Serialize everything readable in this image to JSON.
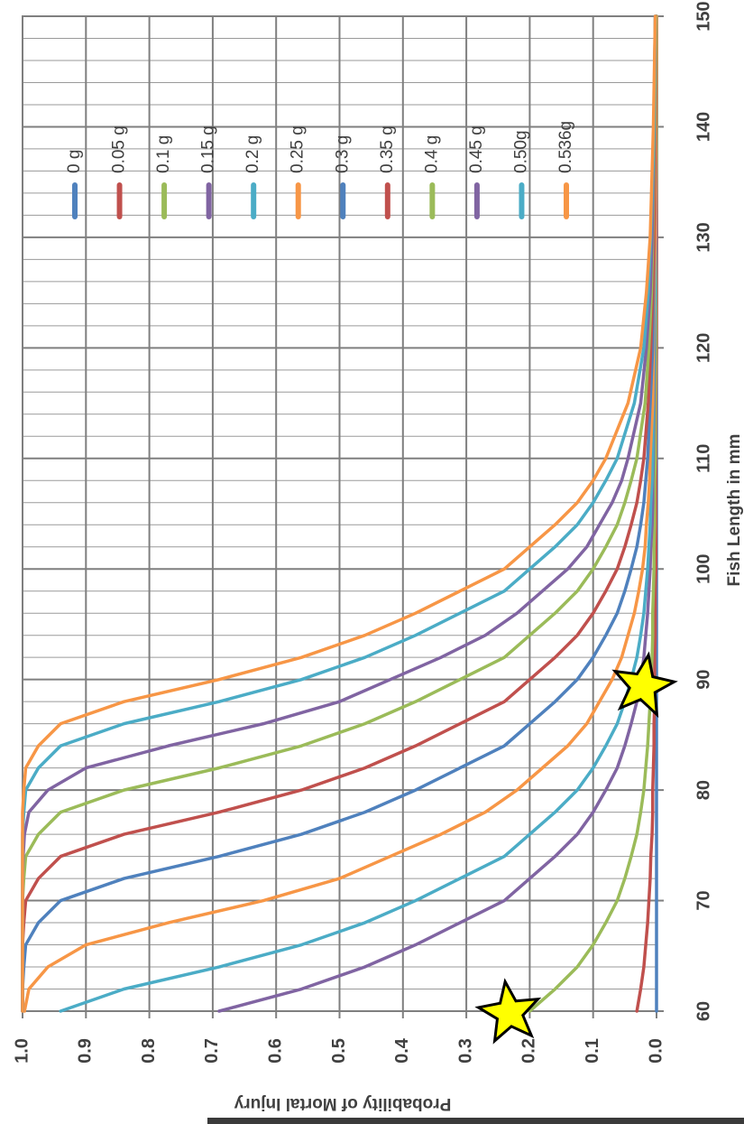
{
  "chart_data": {
    "type": "line",
    "x_label": "Fish Length in mm",
    "y_label": "Probability of Mortal Injury",
    "x": [
      60,
      62,
      64,
      66,
      68,
      70,
      72,
      74,
      76,
      78,
      80,
      82,
      84,
      86,
      88,
      90,
      92,
      94,
      96,
      98,
      100,
      102,
      104,
      106,
      108,
      110,
      115,
      120,
      125,
      130,
      140,
      150
    ],
    "xlim": [
      60,
      150
    ],
    "xticks": [
      60,
      70,
      80,
      90,
      100,
      110,
      120,
      130,
      140,
      150
    ],
    "xminorticks": [
      62,
      64,
      66,
      68,
      72,
      74,
      76,
      78,
      82,
      84,
      86,
      88,
      92,
      94,
      96,
      98,
      102,
      104,
      106,
      108,
      112,
      114,
      116,
      118,
      122,
      124,
      126,
      128,
      132,
      134,
      136,
      138,
      142,
      144,
      146,
      148
    ],
    "ylim": [
      0,
      1
    ],
    "yticks": [
      {
        "value": 0,
        "label": "0.0"
      },
      0.1,
      0.2,
      0.3,
      0.4,
      0.5,
      0.6,
      0.7,
      0.8,
      0.9,
      {
        "value": 1,
        "label": "1.0"
      }
    ],
    "grid": true,
    "series": [
      {
        "name": "0 g",
        "color": "#4f81bd",
        "values": [
          0,
          0,
          0,
          0,
          0,
          0,
          0,
          0,
          0,
          0,
          0,
          0,
          0,
          0,
          0,
          0,
          0,
          0,
          0,
          0,
          0,
          0,
          0,
          0,
          0,
          0,
          0,
          0,
          0,
          0,
          0,
          0
        ]
      },
      {
        "name": "0.05 g",
        "color": "#c0504d",
        "values": [
          0.031,
          0.025,
          0.02,
          0.017,
          0.014,
          0.012,
          0.01,
          0.009,
          0.007,
          0.006,
          0.006,
          0.005,
          0.004,
          0.004,
          0.003,
          0.003,
          0.003,
          0.002,
          0.002,
          0.002,
          0.001,
          0.001,
          0.001,
          0.001,
          0.001,
          0.001,
          0.001,
          0,
          0,
          0,
          0,
          0
        ]
      },
      {
        "name": "0.1 g",
        "color": "#9bbb59",
        "values": [
          0.2,
          0.16,
          0.125,
          0.1,
          0.08,
          0.062,
          0.05,
          0.04,
          0.031,
          0.025,
          0.02,
          0.017,
          0.014,
          0.012,
          0.01,
          0.009,
          0.007,
          0.006,
          0.006,
          0.005,
          0.004,
          0.004,
          0.003,
          0.003,
          0.003,
          0.002,
          0.002,
          0.001,
          0.001,
          0.001,
          0,
          0
        ]
      },
      {
        "name": "0.15 g",
        "color": "#8064a2",
        "values": [
          0.69,
          0.56,
          0.46,
          0.38,
          0.31,
          0.24,
          0.2,
          0.16,
          0.125,
          0.1,
          0.08,
          0.062,
          0.05,
          0.04,
          0.031,
          0.025,
          0.02,
          0.017,
          0.014,
          0.012,
          0.01,
          0.009,
          0.007,
          0.006,
          0.006,
          0.005,
          0.004,
          0.003,
          0.002,
          0.001,
          0.001,
          0
        ]
      },
      {
        "name": "0.2 g",
        "color": "#4bacc6",
        "values": [
          0.94,
          0.84,
          0.69,
          0.56,
          0.46,
          0.38,
          0.31,
          0.24,
          0.2,
          0.16,
          0.125,
          0.1,
          0.08,
          0.062,
          0.05,
          0.04,
          0.031,
          0.025,
          0.02,
          0.017,
          0.014,
          0.012,
          0.01,
          0.009,
          0.007,
          0.006,
          0.005,
          0.004,
          0.002,
          0.002,
          0.001,
          0
        ]
      },
      {
        "name": "0.25 g",
        "color": "#f79646",
        "values": [
          0.997,
          0.99,
          0.96,
          0.9,
          0.77,
          0.62,
          0.5,
          0.42,
          0.34,
          0.27,
          0.22,
          0.18,
          0.14,
          0.11,
          0.09,
          0.07,
          0.055,
          0.045,
          0.035,
          0.028,
          0.022,
          0.018,
          0.016,
          0.013,
          0.011,
          0.01,
          0.006,
          0.005,
          0.004,
          0.002,
          0.001,
          0
        ]
      },
      {
        "name": "0.3 g",
        "color": "#4f81bd",
        "values": [
          1,
          1,
          0.998,
          0.995,
          0.975,
          0.94,
          0.84,
          0.69,
          0.56,
          0.46,
          0.38,
          0.31,
          0.24,
          0.2,
          0.16,
          0.125,
          0.1,
          0.08,
          0.062,
          0.05,
          0.04,
          0.031,
          0.025,
          0.02,
          0.017,
          0.014,
          0.01,
          0.006,
          0.005,
          0.004,
          0.002,
          0.001
        ]
      },
      {
        "name": "0.35 g",
        "color": "#c0504d",
        "values": [
          1,
          1,
          1,
          1,
          0.998,
          0.995,
          0.975,
          0.94,
          0.84,
          0.69,
          0.56,
          0.46,
          0.38,
          0.31,
          0.24,
          0.2,
          0.16,
          0.125,
          0.1,
          0.08,
          0.062,
          0.05,
          0.04,
          0.031,
          0.025,
          0.02,
          0.013,
          0.009,
          0.006,
          0.004,
          0.002,
          0.001
        ]
      },
      {
        "name": "0.4 g",
        "color": "#9bbb59",
        "values": [
          1,
          1,
          1,
          1,
          1,
          1,
          0.998,
          0.995,
          0.975,
          0.94,
          0.84,
          0.69,
          0.56,
          0.46,
          0.38,
          0.31,
          0.24,
          0.2,
          0.16,
          0.125,
          0.1,
          0.08,
          0.062,
          0.05,
          0.04,
          0.031,
          0.018,
          0.012,
          0.008,
          0.006,
          0.003,
          0.001
        ]
      },
      {
        "name": "0.45 g",
        "color": "#8064a2",
        "values": [
          1,
          1,
          1,
          1,
          1,
          1,
          1,
          0.999,
          0.997,
          0.99,
          0.96,
          0.9,
          0.77,
          0.62,
          0.5,
          0.42,
          0.34,
          0.27,
          0.22,
          0.18,
          0.14,
          0.11,
          0.09,
          0.07,
          0.055,
          0.045,
          0.025,
          0.016,
          0.01,
          0.007,
          0.004,
          0.002
        ]
      },
      {
        "name": "0.50g",
        "color": "#4bacc6",
        "values": [
          1,
          1,
          1,
          1,
          1,
          1,
          1,
          1,
          1,
          0.998,
          0.995,
          0.975,
          0.94,
          0.84,
          0.69,
          0.56,
          0.46,
          0.38,
          0.31,
          0.24,
          0.2,
          0.16,
          0.125,
          0.1,
          0.08,
          0.062,
          0.035,
          0.02,
          0.013,
          0.009,
          0.004,
          0.002
        ]
      },
      {
        "name": "0.536g",
        "color": "#f79646",
        "values": [
          1,
          1,
          1,
          1,
          1,
          1,
          1,
          1,
          1,
          1,
          0.998,
          0.995,
          0.975,
          0.94,
          0.84,
          0.69,
          0.56,
          0.46,
          0.38,
          0.31,
          0.24,
          0.2,
          0.16,
          0.125,
          0.1,
          0.08,
          0.045,
          0.025,
          0.016,
          0.01,
          0.005,
          0.002
        ]
      }
    ]
  }
}
